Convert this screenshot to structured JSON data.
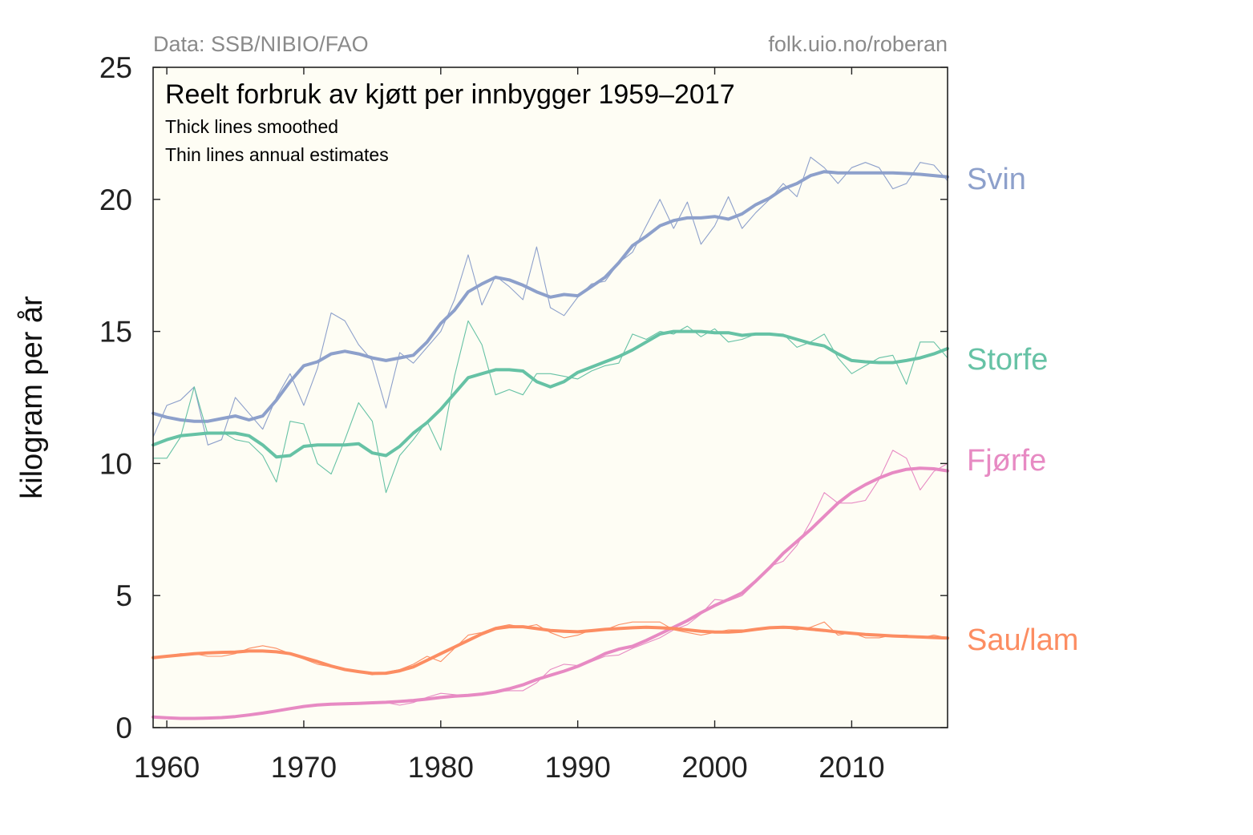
{
  "chart_data": {
    "type": "line",
    "title": "Reelt forbruk av kjøtt per innbygger 1959–2017",
    "subtitles": [
      "Thick lines smoothed",
      "Thin lines annual estimates"
    ],
    "source_left": "Data: SSB/NIBIO/FAO",
    "source_right": "folk.uio.no/roberan",
    "xlabel": "",
    "ylabel": "kilogram per år",
    "xlim": [
      1959,
      2017
    ],
    "ylim": [
      0,
      25
    ],
    "xticks": [
      1960,
      1970,
      1980,
      1990,
      2000,
      2010
    ],
    "yticks": [
      0,
      5,
      10,
      15,
      20,
      25
    ],
    "plot_background": "#fefdf4",
    "grid": false,
    "legend": "direct labels at right",
    "x": [
      1959,
      1960,
      1961,
      1962,
      1963,
      1964,
      1965,
      1966,
      1967,
      1968,
      1969,
      1970,
      1971,
      1972,
      1973,
      1974,
      1975,
      1976,
      1977,
      1978,
      1979,
      1980,
      1981,
      1982,
      1983,
      1984,
      1985,
      1986,
      1987,
      1988,
      1989,
      1990,
      1991,
      1992,
      1993,
      1994,
      1995,
      1996,
      1997,
      1998,
      1999,
      2000,
      2001,
      2002,
      2003,
      2004,
      2005,
      2006,
      2007,
      2008,
      2009,
      2010,
      2011,
      2012,
      2013,
      2014,
      2015,
      2016,
      2017
    ],
    "series": [
      {
        "name": "Svin",
        "color": "#8da0cb",
        "annual": [
          11.0,
          12.2,
          12.4,
          12.9,
          10.7,
          10.9,
          12.5,
          11.9,
          11.3,
          12.5,
          13.4,
          12.2,
          13.6,
          15.7,
          15.4,
          14.5,
          13.9,
          12.1,
          14.2,
          13.8,
          14.4,
          15.0,
          16.2,
          17.9,
          16.0,
          17.1,
          16.7,
          16.2,
          18.2,
          15.9,
          15.6,
          16.3,
          16.8,
          16.9,
          17.6,
          18.0,
          19.0,
          20.0,
          18.9,
          19.9,
          18.3,
          19.0,
          20.1,
          18.9,
          19.5,
          20.0,
          20.6,
          20.1,
          21.6,
          21.2,
          20.6,
          21.2,
          21.4,
          21.2,
          20.4,
          20.6,
          21.4,
          21.3,
          20.7
        ],
        "smoothed": [
          11.9,
          11.75,
          11.65,
          11.6,
          11.6,
          11.7,
          11.8,
          11.65,
          11.8,
          12.4,
          13.1,
          13.7,
          13.85,
          14.15,
          14.25,
          14.15,
          14.0,
          13.9,
          14.0,
          14.1,
          14.6,
          15.3,
          15.8,
          16.5,
          16.8,
          17.05,
          16.95,
          16.75,
          16.5,
          16.3,
          16.4,
          16.35,
          16.7,
          17.05,
          17.6,
          18.25,
          18.6,
          19.0,
          19.2,
          19.3,
          19.3,
          19.35,
          19.25,
          19.45,
          19.8,
          20.05,
          20.4,
          20.6,
          20.9,
          21.05,
          21.0,
          21.0,
          21.0,
          21.0,
          21.0,
          20.98,
          20.95,
          20.9,
          20.85
        ]
      },
      {
        "name": "Storfe",
        "color": "#66c2a5",
        "annual": [
          10.2,
          10.2,
          11.0,
          12.9,
          11.1,
          11.2,
          10.9,
          10.8,
          10.3,
          9.3,
          11.6,
          11.5,
          10.0,
          9.6,
          10.9,
          12.3,
          11.6,
          8.9,
          10.3,
          10.9,
          11.6,
          10.5,
          13.3,
          15.4,
          14.5,
          12.6,
          12.8,
          12.6,
          13.4,
          13.4,
          13.3,
          13.2,
          13.5,
          13.7,
          13.8,
          14.9,
          14.7,
          15.0,
          14.9,
          15.2,
          14.8,
          15.1,
          14.6,
          14.7,
          14.9,
          14.9,
          14.9,
          14.4,
          14.6,
          14.9,
          14.0,
          13.4,
          13.7,
          14.0,
          14.1,
          13.0,
          14.6,
          14.6,
          14.0
        ],
        "smoothed": [
          10.7,
          10.9,
          11.05,
          11.1,
          11.15,
          11.15,
          11.15,
          11.05,
          10.7,
          10.25,
          10.3,
          10.65,
          10.7,
          10.7,
          10.7,
          10.75,
          10.4,
          10.3,
          10.65,
          11.15,
          11.55,
          12.05,
          12.65,
          13.25,
          13.4,
          13.55,
          13.55,
          13.5,
          13.1,
          12.9,
          13.1,
          13.45,
          13.65,
          13.85,
          14.05,
          14.3,
          14.6,
          14.9,
          15.0,
          15.0,
          15.0,
          14.95,
          14.95,
          14.85,
          14.9,
          14.9,
          14.85,
          14.7,
          14.55,
          14.45,
          14.15,
          13.9,
          13.85,
          13.82,
          13.82,
          13.9,
          14.0,
          14.15,
          14.35
        ]
      },
      {
        "name": "Fjørfe",
        "color": "#e78ac3",
        "annual": [
          0.4,
          0.35,
          0.35,
          0.35,
          0.35,
          0.4,
          0.45,
          0.5,
          0.55,
          0.6,
          0.7,
          0.8,
          0.85,
          0.9,
          0.9,
          0.95,
          0.9,
          0.95,
          0.85,
          0.95,
          1.15,
          1.3,
          1.25,
          1.2,
          1.25,
          1.35,
          1.4,
          1.4,
          1.7,
          2.2,
          2.4,
          2.35,
          2.5,
          2.7,
          2.75,
          3.0,
          3.2,
          3.4,
          3.7,
          3.9,
          4.3,
          4.85,
          4.8,
          5.0,
          5.5,
          6.1,
          6.3,
          6.9,
          7.8,
          8.9,
          8.5,
          8.5,
          8.6,
          9.4,
          10.5,
          10.2,
          9.0,
          9.7,
          10.0
        ],
        "smoothed": [
          0.4,
          0.37,
          0.35,
          0.35,
          0.36,
          0.38,
          0.42,
          0.48,
          0.55,
          0.63,
          0.72,
          0.8,
          0.86,
          0.89,
          0.9,
          0.92,
          0.94,
          0.96,
          0.99,
          1.03,
          1.08,
          1.14,
          1.19,
          1.22,
          1.27,
          1.35,
          1.47,
          1.62,
          1.82,
          1.98,
          2.14,
          2.32,
          2.55,
          2.8,
          2.97,
          3.08,
          3.3,
          3.55,
          3.8,
          4.05,
          4.35,
          4.62,
          4.85,
          5.1,
          5.55,
          6.05,
          6.6,
          7.05,
          7.5,
          8.0,
          8.5,
          8.9,
          9.2,
          9.45,
          9.65,
          9.78,
          9.82,
          9.8,
          9.72
        ]
      },
      {
        "name": "Sau/lam",
        "color": "#fc8d62",
        "annual": [
          2.7,
          2.7,
          2.8,
          2.8,
          2.7,
          2.7,
          2.8,
          3.0,
          3.1,
          3.0,
          2.8,
          2.6,
          2.4,
          2.3,
          2.2,
          2.1,
          2.0,
          2.1,
          2.2,
          2.4,
          2.7,
          2.5,
          3.0,
          3.5,
          3.6,
          3.8,
          3.9,
          3.8,
          3.9,
          3.6,
          3.4,
          3.5,
          3.7,
          3.7,
          3.9,
          4.0,
          4.0,
          4.0,
          3.7,
          3.6,
          3.5,
          3.6,
          3.7,
          3.7,
          3.7,
          3.8,
          3.8,
          3.7,
          3.8,
          4.0,
          3.5,
          3.6,
          3.4,
          3.4,
          3.5,
          3.5,
          3.4,
          3.5,
          3.4
        ],
        "smoothed": [
          2.65,
          2.7,
          2.75,
          2.8,
          2.83,
          2.85,
          2.86,
          2.9,
          2.9,
          2.87,
          2.8,
          2.65,
          2.5,
          2.33,
          2.2,
          2.12,
          2.05,
          2.06,
          2.15,
          2.3,
          2.55,
          2.8,
          3.05,
          3.3,
          3.55,
          3.75,
          3.82,
          3.82,
          3.75,
          3.68,
          3.65,
          3.63,
          3.67,
          3.72,
          3.75,
          3.78,
          3.8,
          3.78,
          3.75,
          3.7,
          3.65,
          3.62,
          3.62,
          3.65,
          3.72,
          3.78,
          3.8,
          3.78,
          3.73,
          3.68,
          3.62,
          3.57,
          3.53,
          3.5,
          3.47,
          3.45,
          3.43,
          3.41,
          3.39
        ]
      }
    ]
  }
}
